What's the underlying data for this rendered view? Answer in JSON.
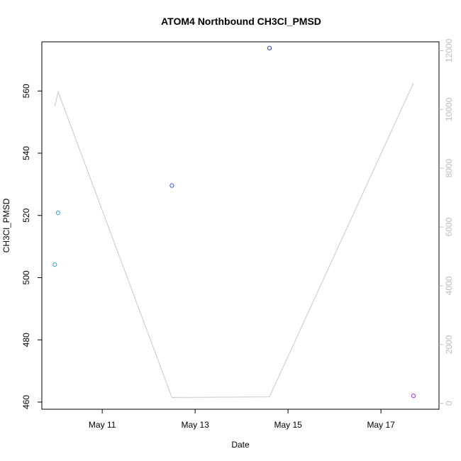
{
  "chart_data": {
    "type": "scatter",
    "title": "ATOM4 Northbound CH3Cl_PMSD",
    "xlabel": "Date",
    "ylabel": "CH3Cl_PMSD",
    "x_tick_labels": [
      "May 11",
      "May 13",
      "May 15",
      "May 17"
    ],
    "x_ticks": [
      11,
      13,
      15,
      17
    ],
    "xlim": [
      9.7,
      18.25
    ],
    "ylim": [
      457.7,
      575.8
    ],
    "y_ticks": [
      460,
      480,
      500,
      520,
      540,
      560
    ],
    "y_tick_labels": [
      "460",
      "480",
      "500",
      "520",
      "540",
      "560"
    ],
    "y2_ticks": [
      0,
      2000,
      4000,
      6000,
      8000,
      10000,
      12000
    ],
    "y2_tick_labels": [
      "0",
      "2000",
      "4000",
      "6000",
      "8000",
      "10000",
      "12000"
    ],
    "y2lim": [
      -200,
      12300
    ],
    "points": [
      {
        "x": 9.98,
        "y": 504.2,
        "color": "#29a3e0"
      },
      {
        "x": 10.05,
        "y": 520.8,
        "color": "#29a3e0"
      },
      {
        "x": 12.5,
        "y": 529.6,
        "color": "#3a4fe0"
      },
      {
        "x": 14.6,
        "y": 573.8,
        "color": "#3030e0"
      },
      {
        "x": 17.7,
        "y": 462.0,
        "color": "#9b30e0"
      }
    ],
    "line_series": {
      "axis": "right",
      "color": "#c8c8c8",
      "x": [
        9.98,
        10.05,
        12.5,
        14.6,
        17.7
      ],
      "y": [
        10100,
        10600,
        200,
        220,
        10900
      ]
    },
    "grid": false,
    "legend": "none"
  }
}
